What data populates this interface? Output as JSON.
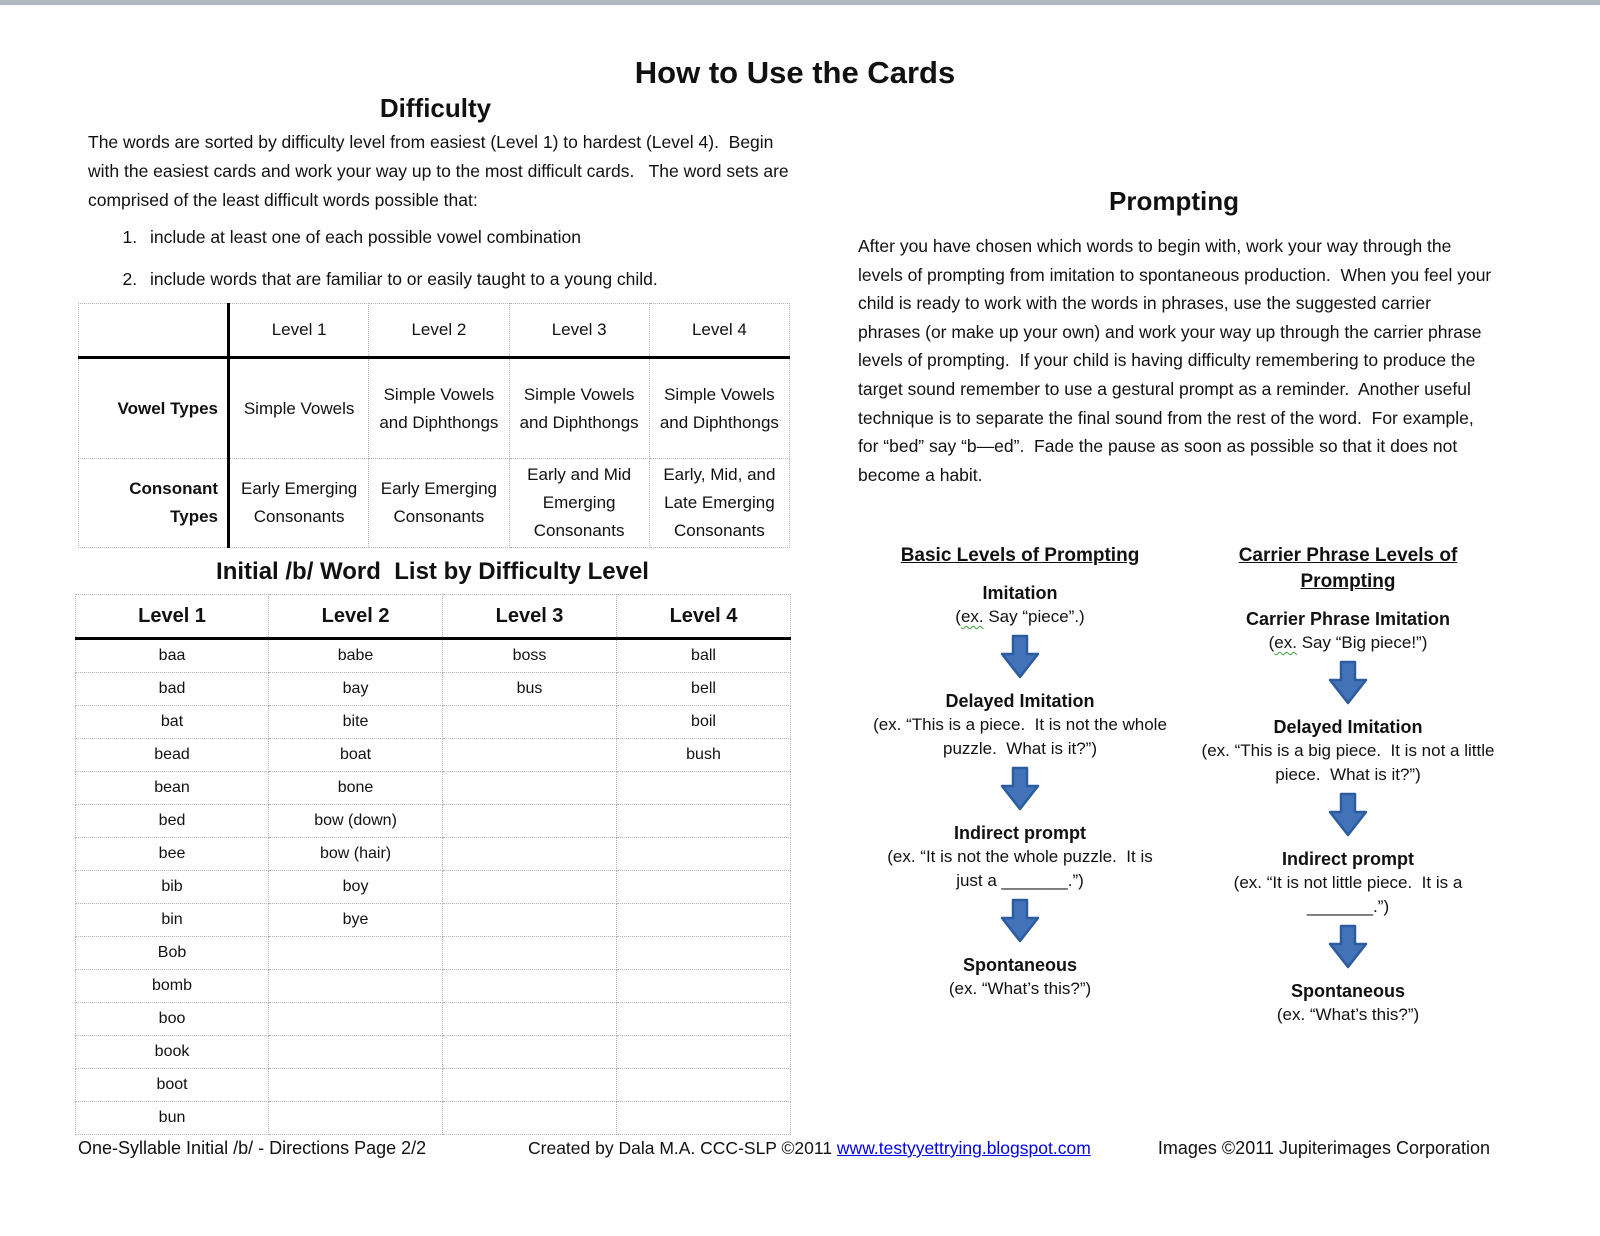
{
  "page": {
    "title": "How to Use the Cards"
  },
  "difficulty": {
    "heading": "Difficulty",
    "paragraph": "The words are sorted by difficulty level from easiest (Level 1) to hardest (Level 4).  Begin with the easiest cards and work your way up to the most difficult cards.   The word sets are comprised of the least difficult words possible that:",
    "list_items": [
      "include at least one of each possible vowel combination",
      "include words that are familiar to or easily taught to a young child."
    ]
  },
  "difficulty_table": {
    "column_headers": [
      "Level 1",
      "Level 2",
      "Level 3",
      "Level 4"
    ],
    "rows": [
      {
        "label": "Vowel Types",
        "cells": [
          "Simple Vowels",
          "Simple Vowels and Diphthongs",
          "Simple Vowels and Diphthongs",
          "Simple Vowels and Diphthongs"
        ]
      },
      {
        "label": "Consonant Types",
        "cells": [
          "Early Emerging Consonants",
          "Early Emerging Consonants",
          "Early and Mid Emerging Consonants",
          "Early, Mid, and Late Emerging Consonants"
        ]
      }
    ]
  },
  "word_list": {
    "heading": "Initial /b/ Word  List by Difficulty Level",
    "column_headers": [
      "Level 1",
      "Level 2",
      "Level 3",
      "Level 4"
    ],
    "rows": [
      [
        "baa",
        "babe",
        "boss",
        "ball"
      ],
      [
        "bad",
        "bay",
        "bus",
        "bell"
      ],
      [
        "bat",
        "bite",
        "",
        "boil"
      ],
      [
        "bead",
        "boat",
        "",
        "bush"
      ],
      [
        "bean",
        "bone",
        "",
        ""
      ],
      [
        "bed",
        "bow (down)",
        "",
        ""
      ],
      [
        "bee",
        "bow (hair)",
        "",
        ""
      ],
      [
        "bib",
        "boy",
        "",
        ""
      ],
      [
        "bin",
        "bye",
        "",
        ""
      ],
      [
        "Bob",
        "",
        "",
        ""
      ],
      [
        "bomb",
        "",
        "",
        ""
      ],
      [
        "boo",
        "",
        "",
        ""
      ],
      [
        "book",
        "",
        "",
        ""
      ],
      [
        "boot",
        "",
        "",
        ""
      ],
      [
        "bun",
        "",
        "",
        ""
      ]
    ]
  },
  "prompting": {
    "heading": "Prompting",
    "paragraph": "After you have chosen which words to begin with, work your way through the levels of prompting from imitation to spontaneous production.  When you feel your child is ready to work with the words in phrases, use the suggested carrier phrases (or make up your own) and work your way up through the carrier phrase levels of prompting.  If your child is having difficulty remembering to produce the target sound remember to use a gestural prompt as a reminder.  Another useful technique is to separate the final sound from the rest of the word.  For example, for “bed” say “b—ed”.  Fade the pause as soon as possible so that it does not become a habit."
  },
  "flowcharts": [
    {
      "title": "Basic Levels of Prompting",
      "steps": [
        {
          "label": "Imitation",
          "example": "(ex. Say “piece”.)",
          "ex_squiggle": true
        },
        {
          "label": "Delayed Imitation",
          "example": "(ex. “This is a piece.  It is not the whole puzzle.  What is it?”)"
        },
        {
          "label": "Indirect prompt",
          "example": "(ex. “It is not the whole puzzle.  It is just a _______.”)"
        },
        {
          "label": "Spontaneous",
          "example": "(ex. “What’s this?”)"
        }
      ]
    },
    {
      "title": "Carrier Phrase Levels of Prompting",
      "steps": [
        {
          "label": "Carrier Phrase Imitation",
          "example": "(ex. Say “Big piece!”)",
          "ex_squiggle": true
        },
        {
          "label": "Delayed Imitation",
          "example": "(ex. “This is a big piece.  It is not a little piece.  What is it?”)"
        },
        {
          "label": "Indirect prompt",
          "example": "(ex. “It is not little piece.  It is a _______.”)"
        },
        {
          "label": "Spontaneous",
          "example": "(ex. “What’s this?”)"
        }
      ]
    }
  ],
  "footer": {
    "left": "One-Syllable Initial /b/ - Directions Page 2/2",
    "center_prefix": "Created by Dala M.A. CCC-SLP ©2011 ",
    "center_link": "www.testyyettrying.blogspot.com",
    "right": "Images ©2011 Jupiterimages Corporation"
  },
  "colors": {
    "arrow_fill": "#4273B8",
    "arrow_stroke": "#2B5C9F",
    "link_blue": "#0000EE",
    "squiggle_green": "#3AA33A",
    "top_bar_gray": "#B1B8C0"
  }
}
